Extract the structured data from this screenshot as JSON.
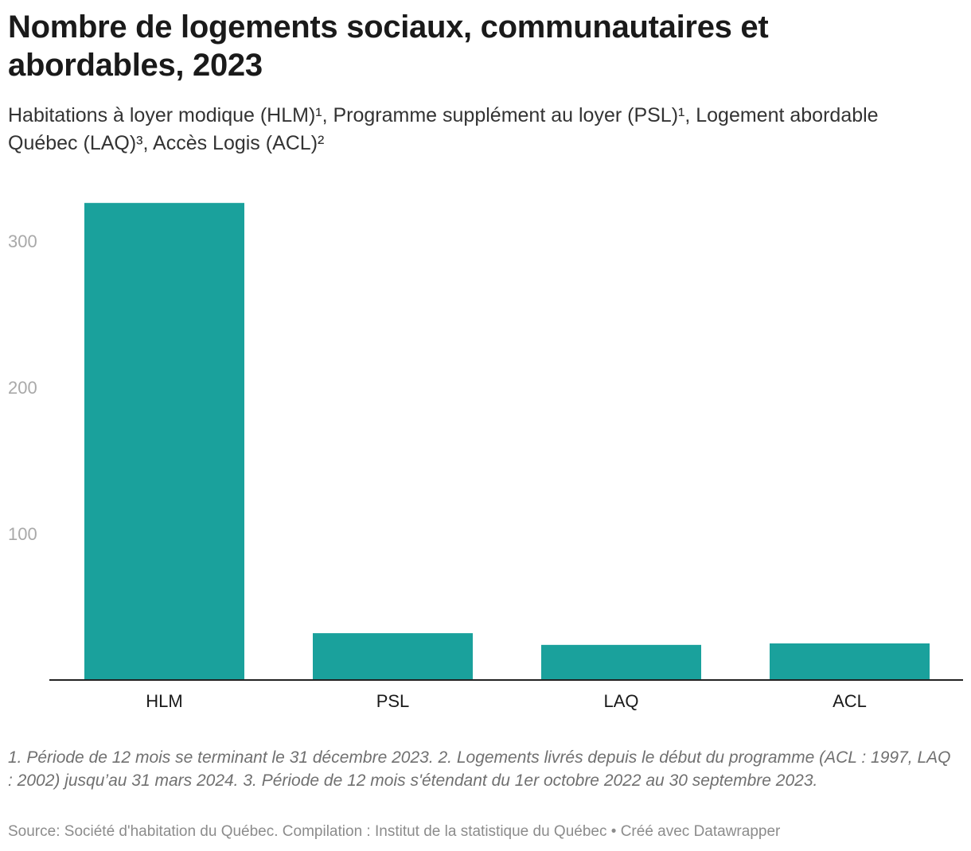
{
  "header": {
    "title": "Nombre de logements sociaux, communautaires et abordables, 2023",
    "subtitle": "Habitations à loyer modique (HLM)¹, Programme supplément au loyer (PSL)¹, Logement abordable Québec (LAQ)³, Accès Logis (ACL)²"
  },
  "chart_data": {
    "type": "bar",
    "categories": [
      "HLM",
      "PSL",
      "LAQ",
      "ACL"
    ],
    "values": [
      326,
      32,
      24,
      25
    ],
    "y_ticks": [
      100,
      200,
      300
    ],
    "y_tick_labels": [
      "100",
      "200",
      "300"
    ],
    "ylim": [
      0,
      340
    ],
    "grid": false,
    "bar_color": "#1aa19c"
  },
  "footer": {
    "notes": "1. Période de 12 mois se terminant le 31 décembre 2023. 2. Logements livrés depuis le début du programme (ACL : 1997, LAQ : 2002) jusqu’au 31 mars 2024. 3. Période de 12 mois s'étendant du 1er octobre 2022 au 30 septembre 2023.",
    "source_prefix": "Source: ",
    "source": "Société d'habitation du Québec. Compilation : Institut de la statistique du Québec",
    "separator": " • ",
    "credit": "Créé avec Datawrapper"
  }
}
